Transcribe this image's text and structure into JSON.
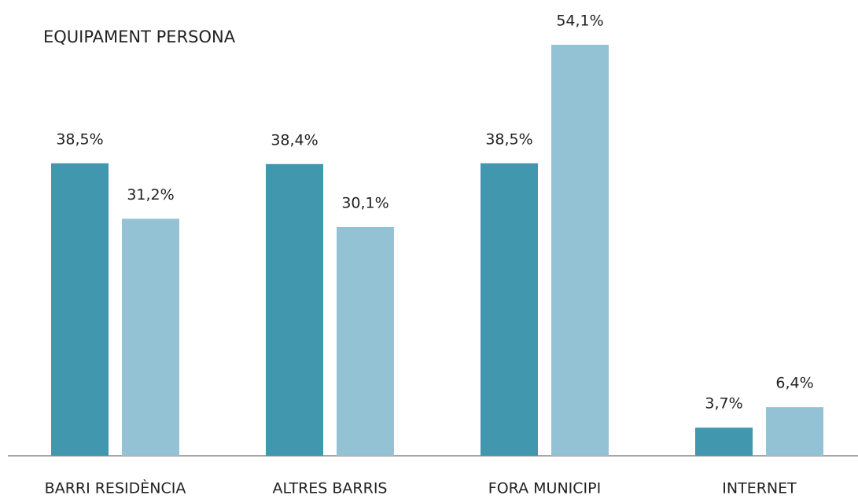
{
  "chart_data": {
    "type": "bar",
    "title": "EQUIPAMENT PERSONA",
    "categories": [
      "BARRI RESIDÈNCIA",
      "ALTRES BARRIS",
      "FORA MUNICIPI",
      "INTERNET"
    ],
    "series": [
      {
        "color": "#4097ae",
        "values": [
          38.5,
          38.4,
          38.5,
          3.7
        ],
        "value_labels": [
          "38,5%",
          "38,4%",
          "38,5%",
          "3,7%"
        ]
      },
      {
        "color": "#93c2d4",
        "values": [
          31.2,
          30.1,
          54.1,
          6.4
        ],
        "value_labels": [
          "31,2%",
          "30,1%",
          "54,1%",
          "6,4%"
        ]
      }
    ]
  }
}
